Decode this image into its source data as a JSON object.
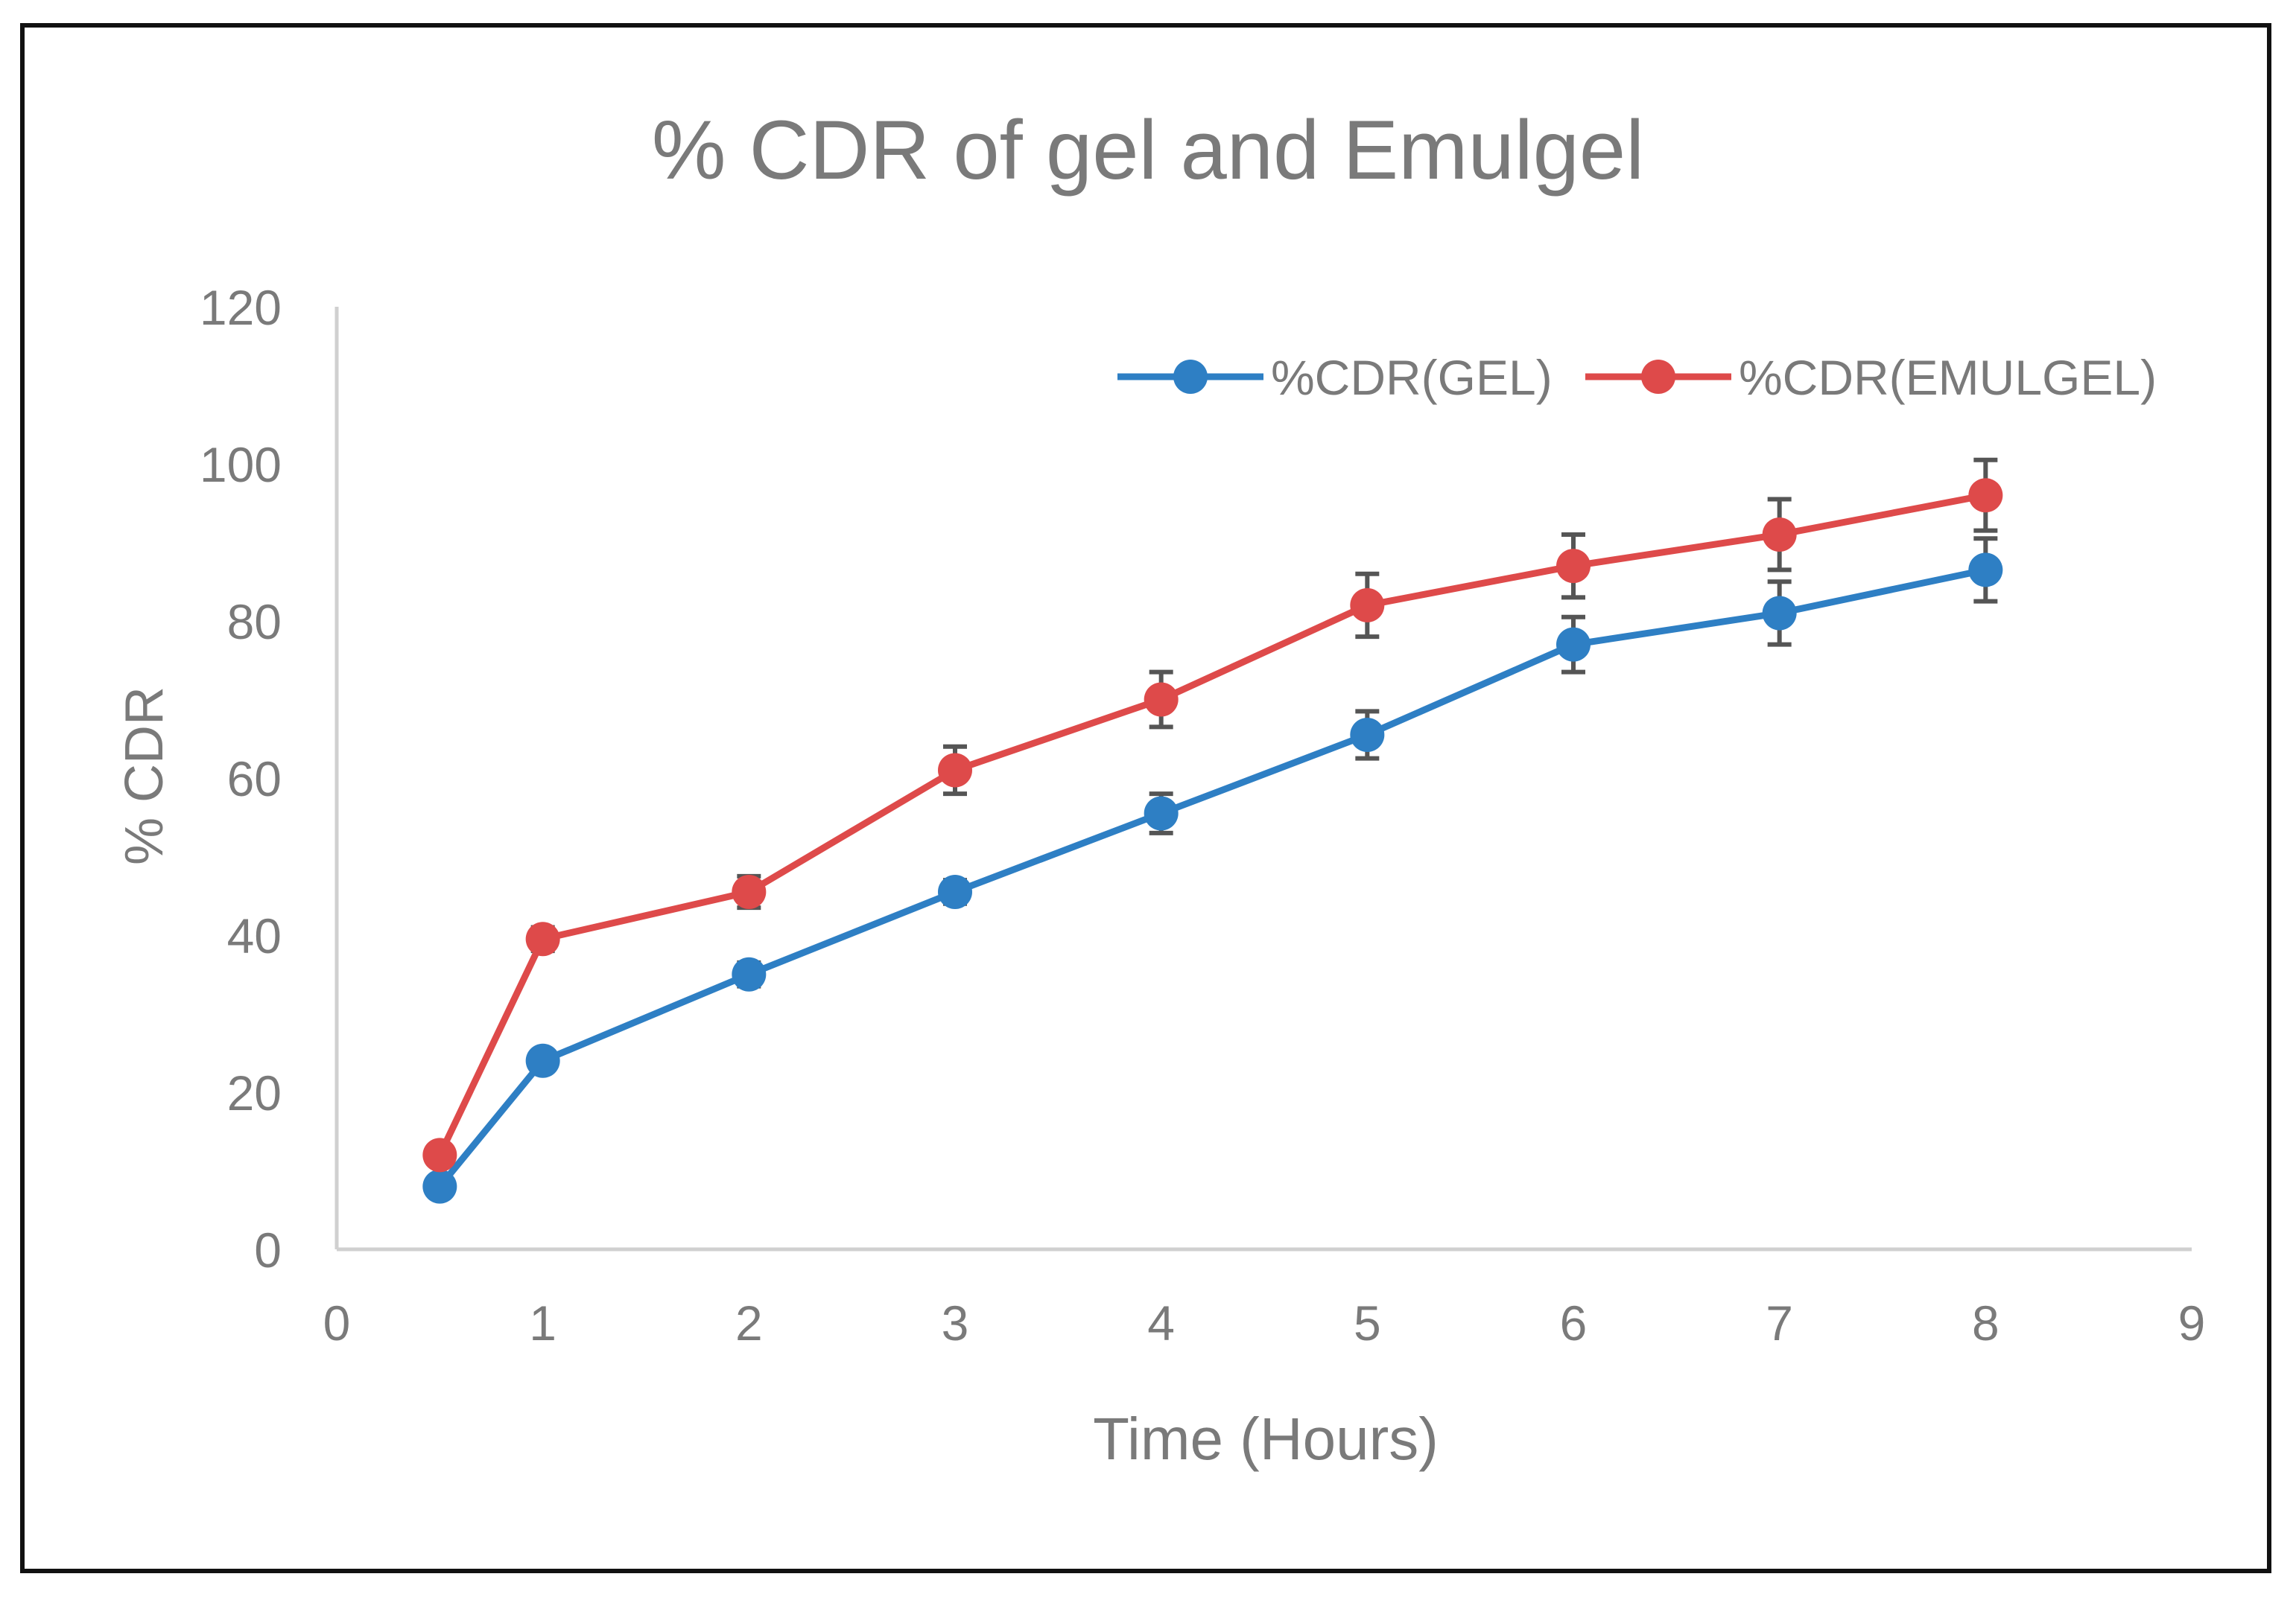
{
  "chart_data": {
    "type": "line",
    "title": "% CDR of gel and Emulgel",
    "xlabel": "Time (Hours)",
    "ylabel": "% CDR",
    "xlim": [
      0,
      9
    ],
    "ylim": [
      0,
      120
    ],
    "x_ticks": [
      "0",
      "1",
      "2",
      "3",
      "4",
      "5",
      "6",
      "7",
      "8",
      "9"
    ],
    "y_ticks": [
      "0",
      "20",
      "40",
      "60",
      "80",
      "100",
      "120"
    ],
    "grid": false,
    "legend_position": "top-right",
    "x": [
      0.5,
      1,
      2,
      3,
      4,
      5,
      6,
      7,
      8
    ],
    "series": [
      {
        "name": "%CDR(GEL)",
        "color": "#2e7fc4",
        "values": [
          8,
          24,
          35,
          45.5,
          55.5,
          65.5,
          77,
          81,
          86.5
        ],
        "errors": [
          1,
          1,
          1.5,
          1.5,
          2.5,
          3,
          3.5,
          4,
          4
        ]
      },
      {
        "name": "%CDR(EMULGEL)",
        "color": "#de4a4a",
        "values": [
          12,
          39.5,
          45.5,
          61,
          70,
          82,
          87,
          91,
          96
        ],
        "errors": [
          1,
          1.5,
          2,
          3,
          3.5,
          4,
          4,
          4.5,
          4.5
        ]
      }
    ],
    "error_bar_color": "#555555"
  }
}
